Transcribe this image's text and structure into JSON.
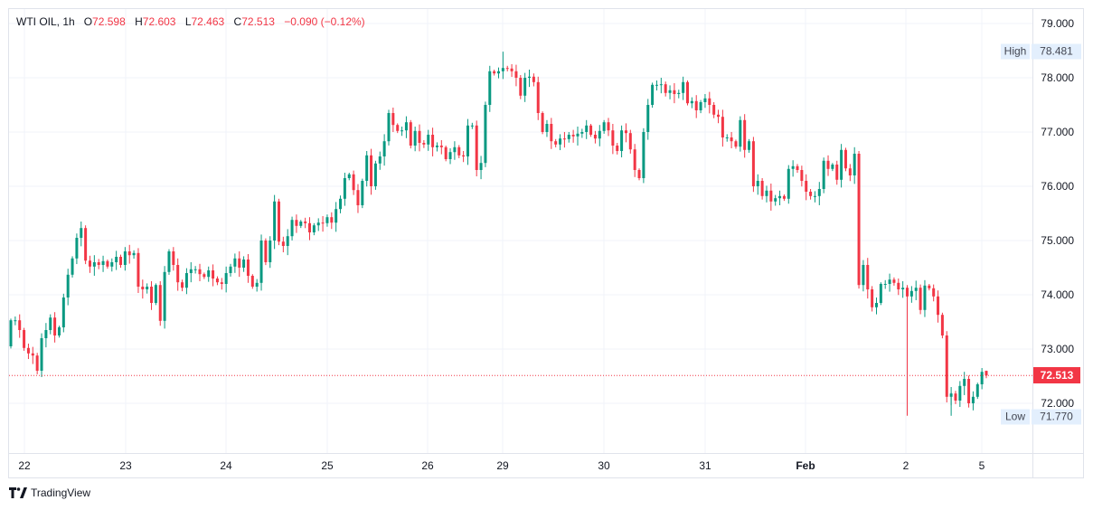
{
  "legend": {
    "symbol": "WTI OIL, 1h",
    "o_label": "O",
    "o": "72.598",
    "h_label": "H",
    "h": "72.603",
    "l_label": "L",
    "l": "72.463",
    "c_label": "C",
    "c": "72.513",
    "change": "−0.090 (−0.12%)"
  },
  "price_axis": [
    "79.000",
    "78.000",
    "77.000",
    "76.000",
    "75.000",
    "74.000",
    "73.000",
    "72.000"
  ],
  "time_axis": [
    "22",
    "23",
    "24",
    "25",
    "26",
    "29",
    "30",
    "31",
    "Feb",
    "2",
    "5"
  ],
  "high_badge": {
    "label": "High",
    "value": "78.481"
  },
  "low_badge": {
    "label": "Low",
    "value": "71.770"
  },
  "last_price": "72.513",
  "brand": "TradingView",
  "colors": {
    "up": "#089981",
    "down": "#f23645",
    "grid": "#f0f3fa"
  },
  "chart_data": {
    "type": "candlestick",
    "title": "WTI OIL, 1h",
    "ylim": [
      71.6,
      79.3
    ],
    "high": 78.481,
    "low": 71.77,
    "first_open": 73.05,
    "last": {
      "open": 72.598,
      "high": 72.603,
      "low": 72.463,
      "close": 72.513
    },
    "closes": [
      73.53,
      73.53,
      73.35,
      73.02,
      72.92,
      72.88,
      72.6,
      73.2,
      73.35,
      73.58,
      73.25,
      73.4,
      73.95,
      74.37,
      74.67,
      75.05,
      75.23,
      74.63,
      74.52,
      74.6,
      74.55,
      74.62,
      74.52,
      74.6,
      74.7,
      74.55,
      74.8,
      74.73,
      74.77,
      74.15,
      74.1,
      74.15,
      73.85,
      74.18,
      73.52,
      74.42,
      74.8,
      74.55,
      74.23,
      74.13,
      74.4,
      74.47,
      74.47,
      74.38,
      74.33,
      74.45,
      74.3,
      74.23,
      74.2,
      74.4,
      74.52,
      74.67,
      74.5,
      74.65,
      74.35,
      74.15,
      74.22,
      75.0,
      74.6,
      75.0,
      75.72,
      74.98,
      74.9,
      75.08,
      75.38,
      75.27,
      75.35,
      75.32,
      75.15,
      75.28,
      75.33,
      75.32,
      75.43,
      75.33,
      75.58,
      75.77,
      76.15,
      76.22,
      75.93,
      75.65,
      76.1,
      76.57,
      76.0,
      76.42,
      76.55,
      76.83,
      77.35,
      77.13,
      77.02,
      77.03,
      77.18,
      76.75,
      77.02,
      76.8,
      76.77,
      76.95,
      76.72,
      76.75,
      76.72,
      76.5,
      76.63,
      76.72,
      76.57,
      76.55,
      77.12,
      77.12,
      76.3,
      76.43,
      77.5,
      78.12,
      78.08,
      78.12,
      78.18,
      78.17,
      78.12,
      78.0,
      77.67,
      78.0,
      78.02,
      77.92,
      77.35,
      77.0,
      77.15,
      76.83,
      76.77,
      76.88,
      76.87,
      76.95,
      76.92,
      76.97,
      77.0,
      77.12,
      76.95,
      76.88,
      77.02,
      77.18,
      77.03,
      76.75,
      76.65,
      77.03,
      76.98,
      76.68,
      76.3,
      76.15,
      77.0,
      77.5,
      77.87,
      77.87,
      77.88,
      77.72,
      77.77,
      77.7,
      77.72,
      77.92,
      77.53,
      77.57,
      77.4,
      77.55,
      77.62,
      77.5,
      77.32,
      77.28,
      76.9,
      76.9,
      76.83,
      76.73,
      77.22,
      76.67,
      76.83,
      76.0,
      76.1,
      75.82,
      75.92,
      75.72,
      75.78,
      75.82,
      75.77,
      76.32,
      76.37,
      76.3,
      76.1,
      75.9,
      75.82,
      75.82,
      75.95,
      76.47,
      76.32,
      76.4,
      76.12,
      76.67,
      76.33,
      76.2,
      76.6,
      74.18,
      74.55,
      74.1,
      73.77,
      73.85,
      74.2,
      74.2,
      74.28,
      74.22,
      74.1,
      74.13,
      73.97,
      74.07,
      74.13,
      73.72,
      74.17,
      74.12,
      73.97,
      73.63,
      73.25,
      72.12,
      72.18,
      72.05,
      72.32,
      72.45,
      72.0,
      72.12,
      72.35,
      72.58,
      72.513
    ]
  }
}
